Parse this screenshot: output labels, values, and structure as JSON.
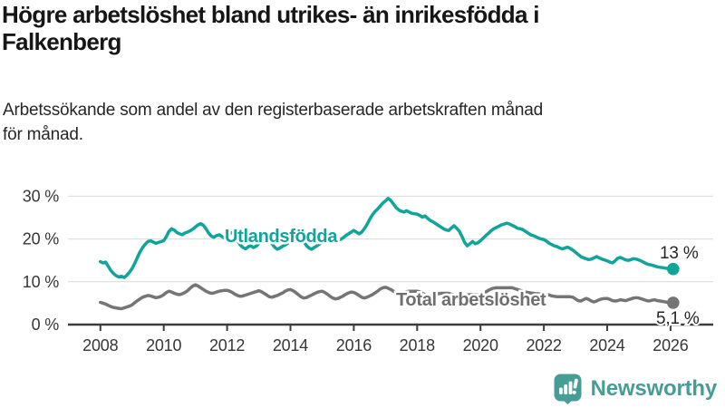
{
  "header": {
    "title": "Högre arbetslöshet bland utrikes- än inrikesfödda i\nFalkenberg",
    "subtitle": "Arbetssökande som andel av den registerbaserade arbetskraften månad\nför månad."
  },
  "chart_data": {
    "type": "line",
    "unit": "%",
    "grid": "horizontal",
    "x_axis": {
      "ticks": [
        2008,
        2010,
        2012,
        2014,
        2016,
        2018,
        2020,
        2022,
        2024,
        2026
      ],
      "labels": [
        "2008",
        "2010",
        "2012",
        "2014",
        "2016",
        "2018",
        "2020",
        "2022",
        "2024",
        "2026"
      ],
      "range": [
        2007.9,
        2026.6
      ]
    },
    "y_axis": {
      "ticks": [
        0,
        10,
        20,
        30
      ],
      "labels": [
        "0 %",
        "10 %",
        "20 %",
        "30 %"
      ],
      "range": [
        0,
        31
      ]
    },
    "series": [
      {
        "name": "Utlandsfödda",
        "color": "#10a49b",
        "start_year": 2008,
        "step_years": 0.083333,
        "end_value": 13.0,
        "end_label": "13 %",
        "values": [
          14.7,
          14.4,
          14.6,
          13.6,
          12.6,
          11.9,
          11.4,
          11.1,
          11.3,
          11.0,
          11.5,
          12.2,
          13.1,
          14.3,
          15.7,
          17.0,
          18.0,
          18.8,
          19.4,
          19.6,
          19.3,
          19.0,
          19.2,
          19.4,
          19.6,
          20.6,
          21.8,
          22.4,
          22.1,
          21.5,
          21.2,
          21.0,
          21.4,
          21.6,
          21.9,
          22.3,
          22.8,
          23.3,
          23.6,
          23.2,
          22.4,
          21.4,
          20.7,
          20.4,
          20.8,
          21.0,
          20.6,
          20.2,
          20.9,
          21.3,
          21.5,
          21.0,
          19.6,
          18.6,
          18.0,
          17.7,
          18.2,
          18.4,
          18.0,
          18.3,
          18.9,
          19.6,
          20.2,
          20.4,
          19.8,
          18.9,
          18.1,
          17.6,
          17.9,
          18.3,
          18.6,
          19.0,
          19.5,
          20.1,
          20.6,
          20.8,
          20.3,
          19.4,
          18.5,
          17.9,
          17.6,
          18.0,
          18.4,
          18.8,
          19.3,
          19.9,
          20.6,
          21.0,
          20.7,
          20.1,
          19.6,
          19.9,
          20.3,
          20.8,
          21.2,
          21.6,
          22.0,
          21.6,
          21.2,
          21.6,
          22.4,
          23.4,
          24.6,
          25.6,
          26.4,
          27.0,
          27.7,
          28.4,
          28.9,
          29.5,
          29.0,
          28.2,
          27.4,
          26.8,
          26.5,
          26.3,
          26.6,
          26.3,
          26.0,
          25.9,
          25.8,
          25.5,
          25.1,
          25.4,
          24.8,
          24.3,
          24.0,
          23.6,
          23.2,
          22.8,
          22.4,
          22.1,
          22.0,
          22.6,
          23.1,
          22.5,
          21.8,
          20.6,
          19.2,
          18.4,
          18.9,
          19.4,
          18.9,
          19.1,
          19.6,
          20.2,
          20.8,
          21.3,
          21.9,
          22.4,
          22.7,
          23.0,
          23.3,
          23.5,
          23.7,
          23.5,
          23.2,
          22.9,
          22.5,
          22.4,
          22.2,
          21.8,
          21.4,
          21.0,
          20.8,
          20.5,
          20.2,
          20.0,
          19.9,
          19.5,
          19.0,
          18.7,
          18.4,
          18.2,
          17.9,
          17.7,
          17.9,
          18.1,
          17.8,
          17.4,
          16.9,
          16.4,
          15.9,
          15.6,
          15.4,
          15.2,
          15.3,
          15.6,
          15.9,
          15.6,
          15.3,
          15.1,
          14.9,
          14.6,
          14.4,
          14.9,
          15.5,
          15.7,
          15.4,
          15.1,
          15.0,
          15.2,
          15.4,
          15.3,
          15.1,
          14.8,
          14.5,
          14.2,
          14.0,
          13.9,
          13.7,
          13.5,
          13.4,
          13.3,
          13.2,
          13.1,
          13.0,
          13.0
        ]
      },
      {
        "name": "Total arbetslöshet",
        "color": "#757575",
        "start_year": 2008,
        "step_years": 0.083333,
        "end_value": 5.1,
        "end_label": "5,1 %",
        "values": [
          5.2,
          5.0,
          4.8,
          4.5,
          4.2,
          4.0,
          3.9,
          3.8,
          3.7,
          3.9,
          4.1,
          4.3,
          4.6,
          5.1,
          5.6,
          6.0,
          6.4,
          6.6,
          6.8,
          6.7,
          6.5,
          6.3,
          6.4,
          6.6,
          7.0,
          7.5,
          7.8,
          7.6,
          7.3,
          7.1,
          7.0,
          7.2,
          7.5,
          7.9,
          8.5,
          9.0,
          9.3,
          9.0,
          8.6,
          8.2,
          7.8,
          7.5,
          7.3,
          7.4,
          7.6,
          7.8,
          7.9,
          8.0,
          8.0,
          7.8,
          7.5,
          7.1,
          6.8,
          6.6,
          6.7,
          6.9,
          7.1,
          7.3,
          7.5,
          7.7,
          7.9,
          7.7,
          7.3,
          6.9,
          6.5,
          6.4,
          6.6,
          6.8,
          7.1,
          7.4,
          7.8,
          8.1,
          8.2,
          7.9,
          7.5,
          7.0,
          6.5,
          6.2,
          6.3,
          6.6,
          6.9,
          7.2,
          7.5,
          7.7,
          7.8,
          7.5,
          7.1,
          6.6,
          6.2,
          6.0,
          6.1,
          6.4,
          6.7,
          7.1,
          7.4,
          7.6,
          7.5,
          7.2,
          6.8,
          6.4,
          6.2,
          6.4,
          6.7,
          7.0,
          7.4,
          7.8,
          8.3,
          8.6,
          8.7,
          8.5,
          8.2,
          7.8,
          7.5,
          7.3,
          7.3,
          7.5,
          7.7,
          7.8,
          7.8,
          7.8,
          7.8,
          7.6,
          7.3,
          7.0,
          6.8,
          6.8,
          6.9,
          7.1,
          7.2,
          7.3,
          7.3,
          7.3,
          7.3,
          7.1,
          6.9,
          6.7,
          6.6,
          6.6,
          6.7,
          6.9,
          7.0,
          7.0,
          7.0,
          7.0,
          7.0,
          7.2,
          7.6,
          8.0,
          8.3,
          8.5,
          8.6,
          8.6,
          8.6,
          8.6,
          8.6,
          8.6,
          8.6,
          8.4,
          8.2,
          8.0,
          7.8,
          7.6,
          7.5,
          7.4,
          7.3,
          7.2,
          7.2,
          7.2,
          7.2,
          7.0,
          6.9,
          6.7,
          6.6,
          6.5,
          6.5,
          6.5,
          6.5,
          6.5,
          6.5,
          6.4,
          6.0,
          5.6,
          5.5,
          5.8,
          6.1,
          5.9,
          5.5,
          5.3,
          5.5,
          5.8,
          6.0,
          6.1,
          6.1,
          5.9,
          5.6,
          5.5,
          5.6,
          5.8,
          5.7,
          5.6,
          5.8,
          6.0,
          6.2,
          6.3,
          6.2,
          6.0,
          5.8,
          5.6,
          5.5,
          5.7,
          5.8,
          5.6,
          5.5,
          5.4,
          5.3,
          5.2,
          5.1,
          5.1
        ]
      }
    ]
  },
  "footer": {
    "brand_name": "Newsworthy"
  }
}
